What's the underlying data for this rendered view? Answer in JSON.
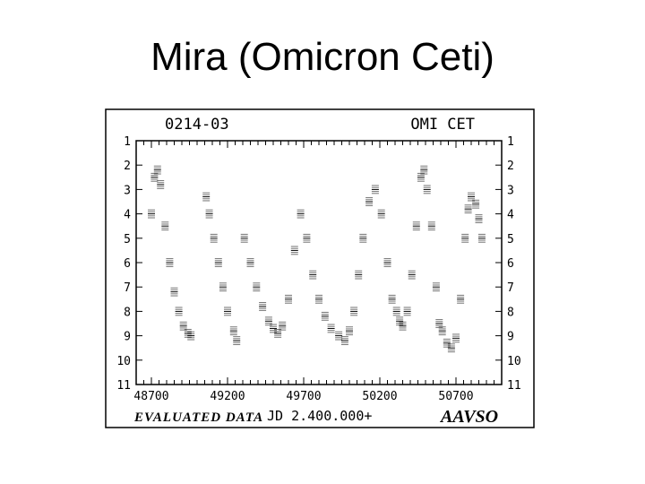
{
  "slide_title": "Mira (Omicron Ceti)",
  "chart_data": {
    "type": "scatter",
    "title": "",
    "header_left": "0214-03",
    "header_right": "OMI CET",
    "footer_left": "EVALUATED DATA",
    "xlabel": "JD 2.400.000+",
    "footer_right": "AAVSO",
    "xlim": [
      48600,
      51000
    ],
    "ylim": [
      11,
      1
    ],
    "x_ticks": [
      48700,
      49200,
      49700,
      50200,
      50700
    ],
    "y_ticks": [
      1,
      2,
      3,
      4,
      5,
      6,
      7,
      8,
      9,
      10,
      11
    ],
    "grid": false,
    "colors": {
      "marks": "#000000",
      "frame": "#000000"
    },
    "series": [
      {
        "x": [
          48700,
          48720,
          48740,
          48760,
          48790,
          48820,
          48850,
          48880,
          48910,
          48940,
          48960,
          49060,
          49080,
          49110,
          49140,
          49170,
          49200,
          49240,
          49260,
          49310,
          49350,
          49390,
          49430,
          49470,
          49500,
          49530,
          49560,
          49600,
          49640,
          49680,
          49720,
          49760,
          49800,
          49840,
          49880,
          49930,
          49970,
          50000,
          50030,
          50060,
          50090,
          50130,
          50170,
          50210,
          50250,
          50280,
          50310,
          50330,
          50350,
          50380,
          50410,
          50440,
          50470,
          50490,
          50510,
          50540,
          50570,
          50590,
          50610,
          50640,
          50670,
          50700,
          50730,
          50760,
          50780,
          50800,
          50830,
          50850,
          50870
        ],
        "y": [
          4.0,
          2.5,
          2.2,
          2.8,
          4.5,
          6.0,
          7.2,
          8.0,
          8.6,
          8.9,
          9.0,
          3.3,
          4.0,
          5.0,
          6.0,
          7.0,
          8.0,
          8.8,
          9.2,
          5.0,
          6.0,
          7.0,
          7.8,
          8.4,
          8.7,
          8.9,
          8.6,
          7.5,
          5.5,
          4.0,
          5.0,
          6.5,
          7.5,
          8.2,
          8.7,
          9.0,
          9.2,
          8.8,
          8.0,
          6.5,
          5.0,
          3.5,
          3.0,
          4.0,
          6.0,
          7.5,
          8.0,
          8.4,
          8.6,
          8.0,
          6.5,
          4.5,
          2.5,
          2.2,
          3.0,
          4.5,
          7.0,
          8.5,
          8.8,
          9.3,
          9.5,
          9.1,
          7.5,
          5.0,
          3.8,
          3.3,
          3.6,
          4.2,
          5.0
        ]
      }
    ]
  }
}
